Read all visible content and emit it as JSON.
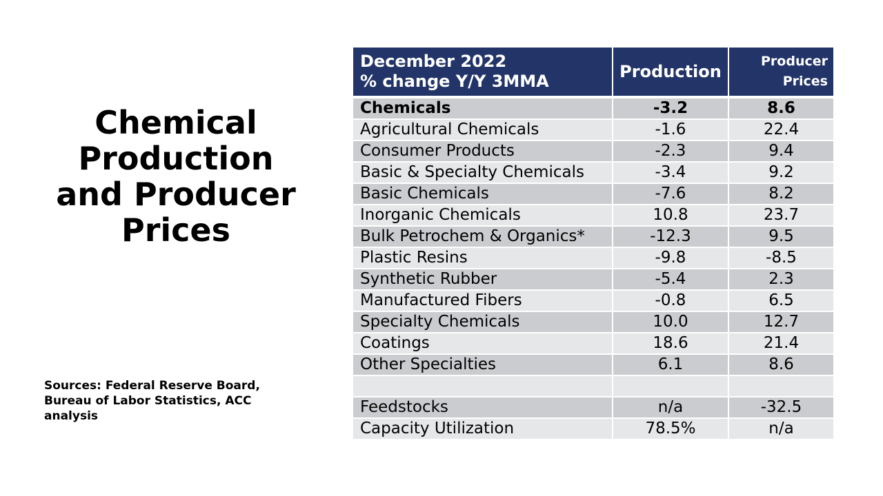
{
  "title_lines": [
    "Chemical",
    "Production",
    "and Producer",
    "Prices"
  ],
  "sources_lines": [
    "Sources: Federal Reserve Board,",
    "Bureau of Labor Statistics, ACC",
    "analysis"
  ],
  "table": {
    "header": {
      "period_line1": "December 2022",
      "period_line2": "% change Y/Y 3MMA",
      "production": "Production",
      "prices_line1": "Producer",
      "prices_line2": "Prices"
    },
    "rows": [
      {
        "name": "Chemicals",
        "production": "-3.2",
        "prices": "8.6"
      },
      {
        "name": "Agricultural Chemicals",
        "production": "-1.6",
        "prices": "22.4"
      },
      {
        "name": "Consumer Products",
        "production": "-2.3",
        "prices": "9.4"
      },
      {
        "name": "Basic & Specialty Chemicals",
        "production": "-3.4",
        "prices": "9.2"
      },
      {
        "name": "Basic Chemicals",
        "production": "-7.6",
        "prices": "8.2"
      },
      {
        "name": "Inorganic Chemicals",
        "production": "10.8",
        "prices": "23.7"
      },
      {
        "name": "Bulk Petrochem & Organics*",
        "production": "-12.3",
        "prices": "9.5"
      },
      {
        "name": "Plastic Resins",
        "production": "-9.8",
        "prices": "-8.5"
      },
      {
        "name": "Synthetic Rubber",
        "production": "-5.4",
        "prices": "2.3"
      },
      {
        "name": "Manufactured Fibers",
        "production": "-0.8",
        "prices": "6.5"
      },
      {
        "name": "Specialty Chemicals",
        "production": "10.0",
        "prices": "12.7"
      },
      {
        "name": "Coatings",
        "production": "18.6",
        "prices": "21.4"
      },
      {
        "name": "Other Specialties",
        "production": "6.1",
        "prices": "8.6"
      },
      {
        "name": "",
        "production": "",
        "prices": ""
      },
      {
        "name": "Feedstocks",
        "production": "n/a",
        "prices": "-32.5"
      },
      {
        "name": "Capacity Utilization",
        "production": "78.5%",
        "prices": "n/a"
      }
    ]
  },
  "colors": {
    "header_bg": "#233568",
    "row_dark": "#cbccd0",
    "row_light": "#e6e7e9"
  }
}
